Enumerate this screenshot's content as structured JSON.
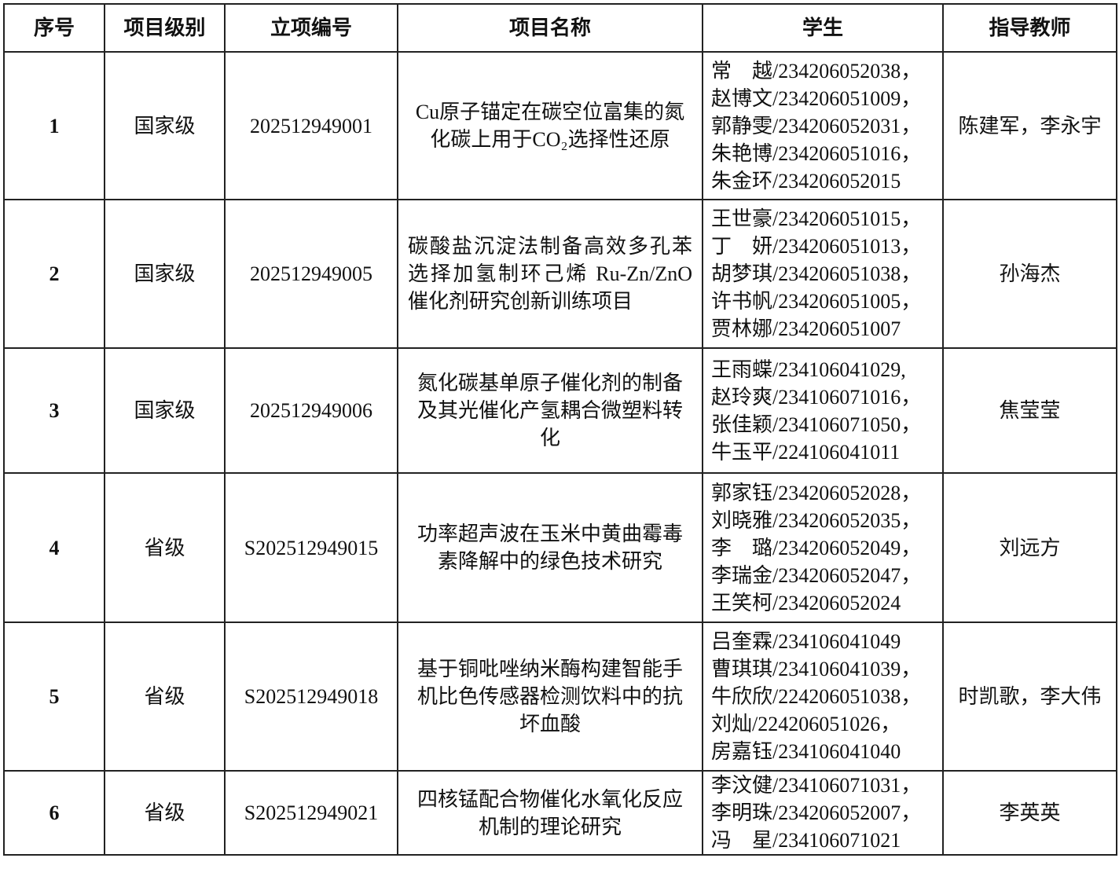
{
  "headers": [
    "序号",
    "项目级别",
    "立项编号",
    "项目名称",
    "学生",
    "指导教师"
  ],
  "rows": [
    {
      "no": "1",
      "level": "国家级",
      "id": "202512949001",
      "name": "Cu原子锚定在碳空位富集的氮化碳上用于CO₂选择性还原",
      "students": [
        "常　越/234206052038，",
        "赵博文/234206051009，",
        "郭静雯/234206052031，",
        "朱艳博/234206051016，",
        "朱金环/234206052015"
      ],
      "advisor": "陈建军，李永宇"
    },
    {
      "no": "2",
      "level": "国家级",
      "id": "202512949005",
      "name": "碳酸盐沉淀法制备高效多孔苯选择加氢制环己烯 Ru-Zn/ZnO 催化剂研究创新训练项目",
      "students": [
        "王世豪/234206051015，",
        "丁　妍/234206051013，",
        "胡梦琪/234206051038，",
        "许书帆/234206051005，",
        "贾林娜/234206051007"
      ],
      "advisor": "孙海杰"
    },
    {
      "no": "3",
      "level": "国家级",
      "id": "202512949006",
      "name": "氮化碳基单原子催化剂的制备及其光催化产氢耦合微塑料转化",
      "students": [
        "王雨蝶/234106041029,",
        "赵玲爽/234106071016，",
        "张佳颖/234106071050，",
        "牛玉平/224106041011"
      ],
      "advisor": "焦莹莹"
    },
    {
      "no": "4",
      "level": "省级",
      "id": "S202512949015",
      "name": "功率超声波在玉米中黄曲霉毒素降解中的绿色技术研究",
      "students": [
        "郭家钰/234206052028，",
        "刘晓雅/234206052035，",
        "李　璐/234206052049，",
        "李瑞金/234206052047，",
        "王笑柯/234206052024"
      ],
      "advisor": "刘远方"
    },
    {
      "no": "5",
      "level": "省级",
      "id": "S202512949018",
      "name": "基于铜吡唑纳米酶构建智能手机比色传感器检测饮料中的抗坏血酸",
      "students": [
        "吕奎霖/234106041049",
        "曹琪琪/234106041039，",
        "牛欣欣/224206051038，",
        "刘灿/224206051026，",
        "房嘉钰/234106041040"
      ],
      "advisor": "时凯歌，李大伟"
    },
    {
      "no": "6",
      "level": "省级",
      "id": "S202512949021",
      "name": "四核锰配合物催化水氧化反应机制的理论研究",
      "students": [
        "李汶健/234106071031，",
        "李明珠/234206052007，",
        "冯　星/234106071021"
      ],
      "advisor": "李英英"
    }
  ]
}
